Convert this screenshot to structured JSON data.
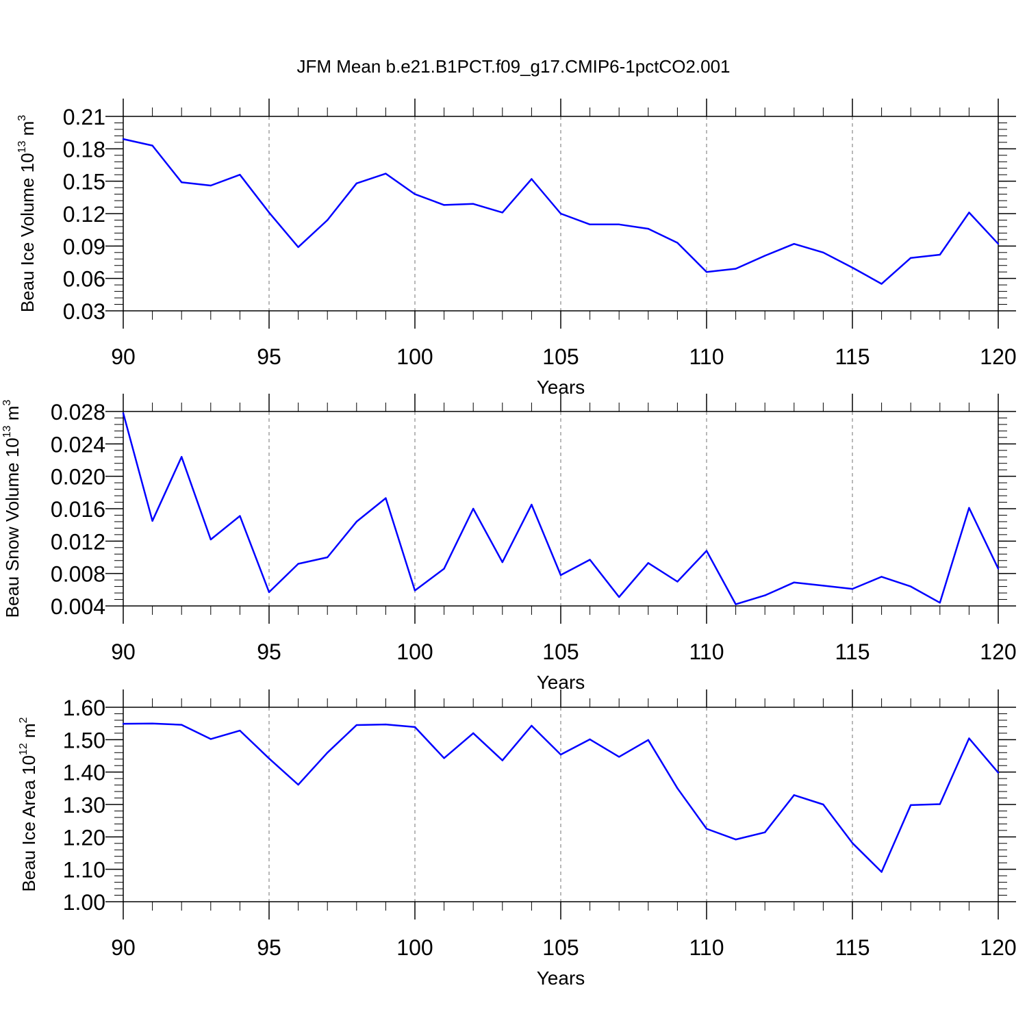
{
  "figure": {
    "title": "JFM Mean b.e21.B1PCT.f09_g17.CMIP6-1pctCO2.001"
  },
  "chart_data": [
    {
      "type": "line",
      "title": "JFM Mean b.e21.B1PCT.f09_g17.CMIP6-1pctCO2.001",
      "xlabel": "Years",
      "ylabel": {
        "main": "Beau Ice Volume 10",
        "exp": "13",
        "unit": " m",
        "unit_exp": "3"
      },
      "xlim": [
        90,
        120
      ],
      "ylim": [
        0.03,
        0.21
      ],
      "x_major_ticks": [
        90,
        95,
        100,
        105,
        110,
        115,
        120
      ],
      "x_tick_labels": [
        "90",
        "95",
        "100",
        "105",
        "110",
        "115",
        "120"
      ],
      "y_major_ticks": [
        0.03,
        0.06,
        0.09,
        0.12,
        0.15,
        0.18,
        0.21
      ],
      "y_tick_labels": [
        "0.03",
        "0.06",
        "0.09",
        "0.12",
        "0.15",
        "0.18",
        "0.21"
      ],
      "y_minor_step": 0.006,
      "grid": "dashed vertical at major x ticks",
      "series_color": "#0000ff",
      "x": [
        90,
        91,
        92,
        93,
        94,
        95,
        96,
        97,
        98,
        99,
        100,
        101,
        102,
        103,
        104,
        105,
        106,
        107,
        108,
        109,
        110,
        111,
        112,
        113,
        114,
        115,
        116,
        117,
        118,
        119,
        120
      ],
      "values": [
        0.189,
        0.183,
        0.149,
        0.146,
        0.156,
        0.121,
        0.089,
        0.114,
        0.148,
        0.157,
        0.138,
        0.128,
        0.129,
        0.121,
        0.152,
        0.12,
        0.11,
        0.11,
        0.106,
        0.093,
        0.066,
        0.069,
        0.081,
        0.092,
        0.084,
        0.07,
        0.055,
        0.079,
        0.082,
        0.121,
        0.092
      ]
    },
    {
      "type": "line",
      "xlabel": "Years",
      "ylabel": {
        "main": "Beau Snow Volume 10",
        "exp": "13",
        "unit": " m",
        "unit_exp": "3"
      },
      "xlim": [
        90,
        120
      ],
      "ylim": [
        0.004,
        0.028
      ],
      "x_major_ticks": [
        90,
        95,
        100,
        105,
        110,
        115,
        120
      ],
      "x_tick_labels": [
        "90",
        "95",
        "100",
        "105",
        "110",
        "115",
        "120"
      ],
      "y_major_ticks": [
        0.004,
        0.008,
        0.012,
        0.016,
        0.02,
        0.024,
        0.028
      ],
      "y_tick_labels": [
        "0.004",
        "0.008",
        "0.012",
        "0.016",
        "0.020",
        "0.024",
        "0.028"
      ],
      "y_minor_step": 0.0008,
      "grid": "dashed vertical at major x ticks",
      "series_color": "#0000ff",
      "x": [
        90,
        91,
        92,
        93,
        94,
        95,
        96,
        97,
        98,
        99,
        100,
        101,
        102,
        103,
        104,
        105,
        106,
        107,
        108,
        109,
        110,
        111,
        112,
        113,
        114,
        115,
        116,
        117,
        118,
        119,
        120
      ],
      "values": [
        0.0278,
        0.0145,
        0.0224,
        0.0122,
        0.0151,
        0.0057,
        0.0092,
        0.01,
        0.0144,
        0.0173,
        0.0059,
        0.0086,
        0.016,
        0.0094,
        0.0165,
        0.0078,
        0.0097,
        0.0051,
        0.0093,
        0.007,
        0.0108,
        0.0042,
        0.0053,
        0.0069,
        0.0065,
        0.0061,
        0.0076,
        0.0064,
        0.0044,
        0.0161,
        0.0086
      ]
    },
    {
      "type": "line",
      "xlabel": "Years",
      "ylabel": {
        "main": "Beau Ice Area 10",
        "exp": "12",
        "unit": " m",
        "unit_exp": "2"
      },
      "xlim": [
        90,
        120
      ],
      "ylim": [
        1.0,
        1.6
      ],
      "x_major_ticks": [
        90,
        95,
        100,
        105,
        110,
        115,
        120
      ],
      "x_tick_labels": [
        "90",
        "95",
        "100",
        "105",
        "110",
        "115",
        "120"
      ],
      "y_major_ticks": [
        1.0,
        1.1,
        1.2,
        1.3,
        1.4,
        1.5,
        1.6
      ],
      "y_tick_labels": [
        "1.00",
        "1.10",
        "1.20",
        "1.30",
        "1.40",
        "1.50",
        "1.60"
      ],
      "y_minor_step": 0.02,
      "grid": "dashed vertical at major x ticks",
      "series_color": "#0000ff",
      "x": [
        90,
        91,
        92,
        93,
        94,
        95,
        96,
        97,
        98,
        99,
        100,
        101,
        102,
        103,
        104,
        105,
        106,
        107,
        108,
        109,
        110,
        111,
        112,
        113,
        114,
        115,
        116,
        117,
        118,
        119,
        120
      ],
      "values": [
        1.549,
        1.55,
        1.546,
        1.502,
        1.528,
        1.442,
        1.361,
        1.46,
        1.545,
        1.547,
        1.539,
        1.443,
        1.52,
        1.436,
        1.543,
        1.454,
        1.501,
        1.447,
        1.499,
        1.35,
        1.225,
        1.192,
        1.214,
        1.329,
        1.3,
        1.181,
        1.092,
        1.298,
        1.301,
        1.504,
        1.398
      ]
    }
  ]
}
